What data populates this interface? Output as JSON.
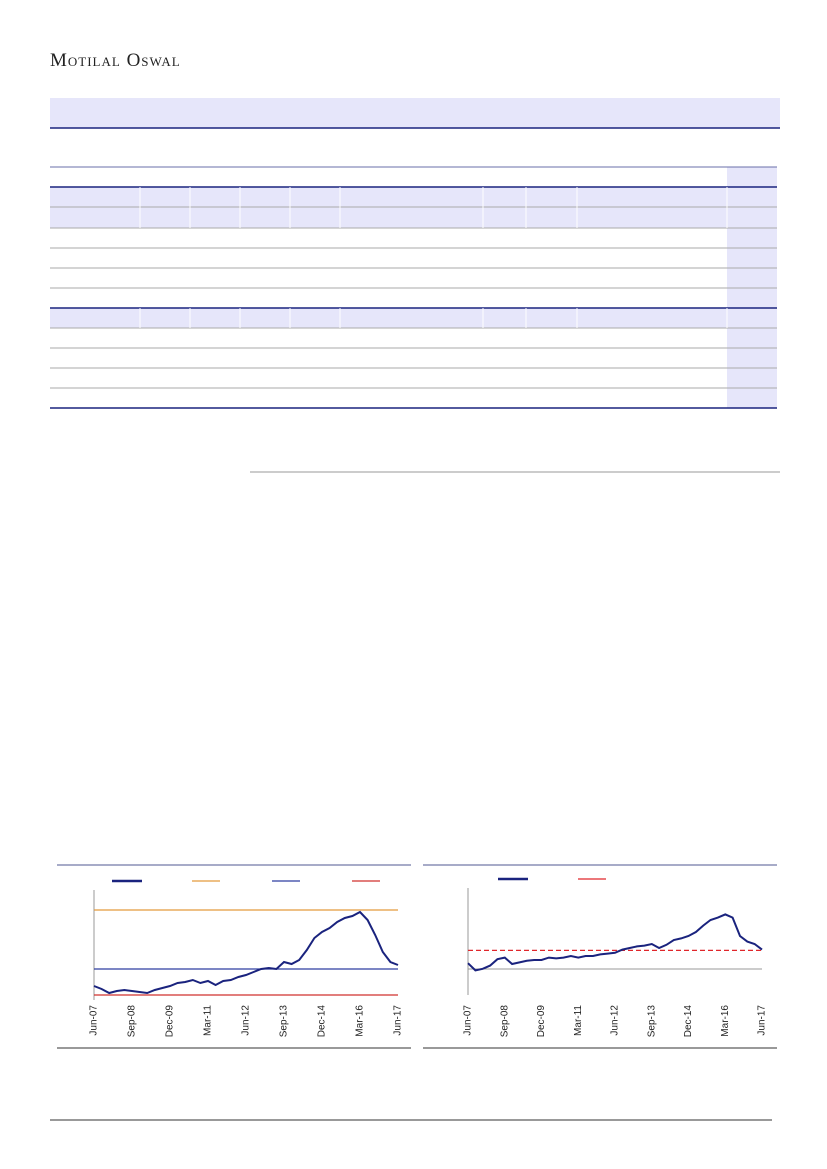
{
  "header": {
    "brand": "Motilal Oswal"
  },
  "chart_data": [
    {
      "type": "line",
      "categories": [
        "Jun-07",
        null,
        null,
        null,
        null,
        "Sep-08",
        null,
        null,
        null,
        null,
        "Dec-09",
        null,
        null,
        null,
        null,
        "Mar-11",
        null,
        null,
        null,
        null,
        "Jun-12",
        null,
        null,
        null,
        null,
        "Sep-13",
        null,
        null,
        null,
        null,
        "Dec-14",
        null,
        null,
        null,
        null,
        "Mar-16",
        null,
        null,
        null,
        null,
        "Jun-17"
      ],
      "series": [
        {
          "color": "#1a237e",
          "values": [
            14,
            11,
            7,
            9,
            10,
            9,
            8,
            7,
            10,
            12,
            14,
            17,
            18,
            20,
            17,
            19,
            15,
            19,
            20,
            23,
            25,
            28,
            31,
            32,
            31,
            38,
            36,
            40,
            50,
            62,
            68,
            72,
            78,
            82,
            84,
            88,
            80,
            65,
            48,
            38,
            35
          ]
        }
      ],
      "hlines": [
        {
          "value": 90,
          "color": "#e39b3c"
        },
        {
          "value": 31,
          "color": "#2f3fa0"
        },
        {
          "value": 5,
          "color": "#d0312d"
        }
      ],
      "ylim": [
        0,
        100
      ]
    },
    {
      "type": "line",
      "categories": [
        "Jun-07",
        null,
        null,
        null,
        null,
        "Sep-08",
        null,
        null,
        null,
        null,
        "Dec-09",
        null,
        null,
        null,
        null,
        "Mar-11",
        null,
        null,
        null,
        null,
        "Jun-12",
        null,
        null,
        null,
        null,
        "Sep-13",
        null,
        null,
        null,
        null,
        "Dec-14",
        null,
        null,
        null,
        null,
        "Mar-16",
        null,
        null,
        null,
        null,
        "Jun-17"
      ],
      "series": [
        {
          "color": "#1a237e",
          "values": [
            21,
            12,
            14,
            18,
            26,
            28,
            20,
            22,
            24,
            25,
            25,
            28,
            27,
            28,
            30,
            28,
            30,
            30,
            32,
            33,
            34,
            38,
            40,
            42,
            43,
            45,
            40,
            44,
            50,
            52,
            55,
            60,
            68,
            75,
            78,
            82,
            78,
            55,
            48,
            45,
            38
          ]
        }
      ],
      "hlines": [
        {
          "value": 37,
          "color": "#e0262b",
          "style": "dashed"
        }
      ],
      "ylim": [
        0,
        100
      ]
    }
  ]
}
